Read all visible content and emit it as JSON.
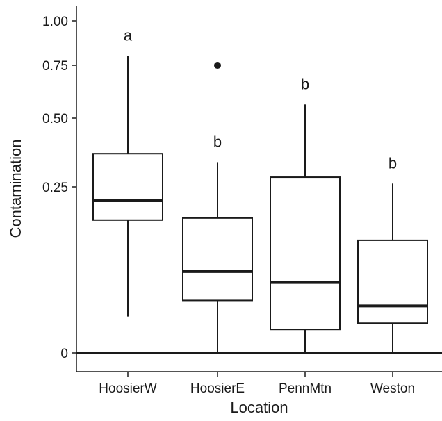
{
  "chart_data": {
    "type": "box",
    "title": "",
    "xlabel": "Location",
    "ylabel": "Contamination",
    "y_scale": "sqrt",
    "ylim": [
      0,
      1.0
    ],
    "y_ticks": [
      0,
      0.25,
      0.5,
      0.75,
      1.0
    ],
    "y_tick_labels": [
      "0",
      "0.25",
      "0.50",
      "0.75",
      "1.00"
    ],
    "grid": false,
    "categories": [
      "HoosierW",
      "HoosierE",
      "PennMtn",
      "Weston"
    ],
    "boxes": [
      {
        "category": "HoosierW",
        "whisker_low": 0.012,
        "q1": 0.16,
        "median": 0.21,
        "q3": 0.36,
        "whisker_high": 0.8,
        "outliers": [],
        "group_label": "a"
      },
      {
        "category": "HoosierE",
        "whisker_low": 0.0,
        "q1": 0.025,
        "median": 0.06,
        "q3": 0.165,
        "whisker_high": 0.33,
        "outliers": [
          0.75
        ],
        "group_label": "b"
      },
      {
        "category": "PennMtn",
        "whisker_low": 0.0,
        "q1": 0.005,
        "median": 0.045,
        "q3": 0.28,
        "whisker_high": 0.56,
        "outliers": [],
        "group_label": "b"
      },
      {
        "category": "Weston",
        "whisker_low": 0.0,
        "q1": 0.008,
        "median": 0.02,
        "q3": 0.115,
        "whisker_high": 0.26,
        "outliers": [],
        "group_label": "b"
      }
    ],
    "colors": {
      "line": "#1a1a1a",
      "box_fill": "#ffffff",
      "axis": "#1a1a1a"
    }
  }
}
